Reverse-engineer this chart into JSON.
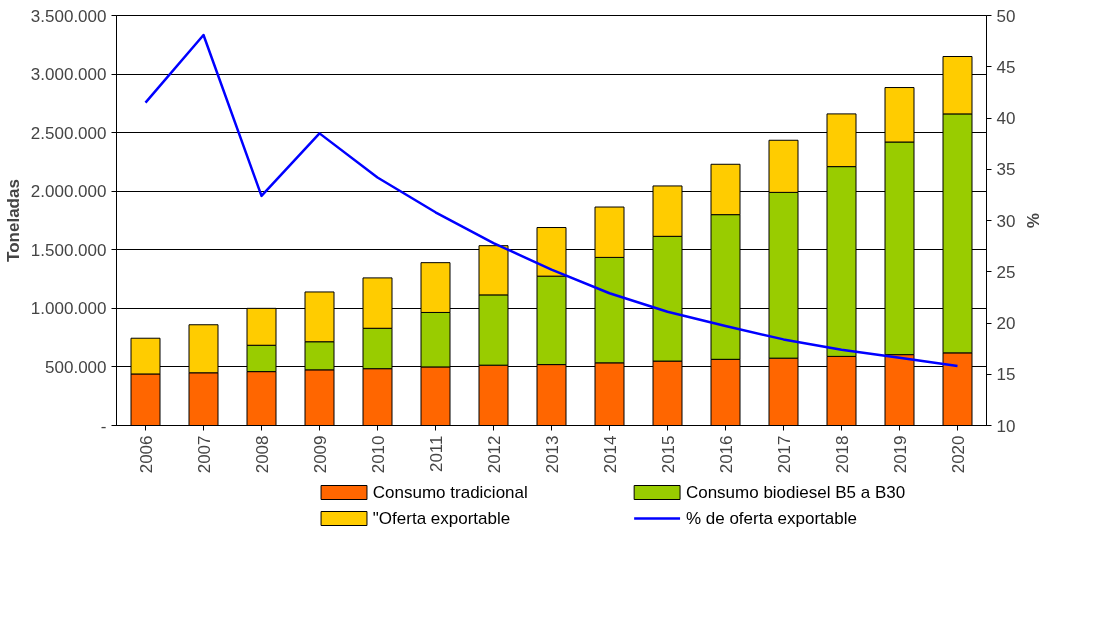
{
  "chart_data": {
    "type": "bar",
    "stacked": true,
    "xlabel": null,
    "ylabel": "Toneladas",
    "y2label": "%",
    "categories": [
      "2006",
      "2007",
      "2008",
      "2009",
      "2010",
      "2011",
      "2012",
      "2013",
      "2014",
      "2015",
      "2016",
      "2017",
      "2018",
      "2019",
      "2020"
    ],
    "series": [
      {
        "name": "Consumo tradicional",
        "color": "#ff6600",
        "values": [
          440000,
          450000,
          460000,
          475000,
          485000,
          500000,
          515000,
          520000,
          535000,
          550000,
          565000,
          575000,
          590000,
          605000,
          620000
        ]
      },
      {
        "name": "Consumo biodiesel B5 a B30",
        "color": "#99cc00",
        "values": [
          null,
          null,
          225000,
          240000,
          345000,
          465000,
          600000,
          755000,
          900000,
          1065000,
          1235000,
          1415000,
          1620000,
          1815000,
          2040000
        ]
      },
      {
        "name": "\"Oferta exportable",
        "color": "#ffcc00",
        "values": [
          305000,
          410000,
          315000,
          425000,
          430000,
          425000,
          420000,
          415000,
          430000,
          430000,
          430000,
          445000,
          450000,
          465000,
          490000
        ]
      },
      {
        "name": "% de oferta exportable",
        "type": "line",
        "axis": "y2",
        "color": "#0000ff",
        "line_style": "solid",
        "values": [
          41.5,
          48.1,
          32.4,
          38.5,
          34.2,
          30.8,
          27.8,
          25.2,
          22.9,
          21.1,
          19.7,
          18.4,
          17.4,
          16.6,
          15.8
        ]
      }
    ],
    "ylim": [
      0,
      3500000
    ],
    "yticks": [
      {
        "value": 0,
        "label": "-"
      },
      {
        "value": 500000,
        "label": "500.000"
      },
      {
        "value": 1000000,
        "label": "1.000.000"
      },
      {
        "value": 1500000,
        "label": "1.500.000"
      },
      {
        "value": 2000000,
        "label": "2.000.000"
      },
      {
        "value": 2500000,
        "label": "2.500.000"
      },
      {
        "value": 3000000,
        "label": "3.000.000"
      },
      {
        "value": 3500000,
        "label": "3.500.000"
      }
    ],
    "y2lim": [
      10,
      50
    ],
    "y2ticks": [
      10,
      15,
      20,
      25,
      30,
      35,
      40,
      45,
      50
    ],
    "grid": "y",
    "legend": "bottom"
  }
}
